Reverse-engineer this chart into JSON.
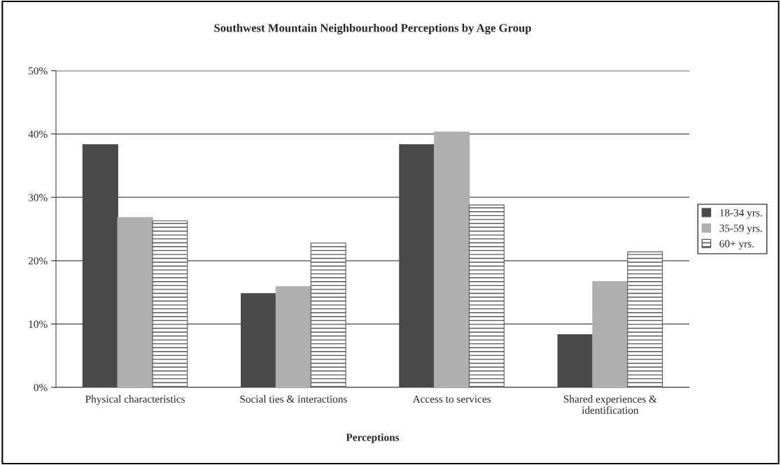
{
  "chart_data": {
    "type": "bar",
    "title": "Southwest Mountain Neighbourhood Perceptions by Age Group",
    "xlabel": "Perceptions",
    "categories": [
      "Physical characteristics",
      "Social ties & interactions",
      "Access to services",
      "Shared experiences &\nidentification"
    ],
    "series": [
      {
        "name": "18-34 yrs.",
        "color": "#4a4a4a",
        "values": [
          38.3,
          14.8,
          38.3,
          8.3
        ]
      },
      {
        "name": "35-59 yrs.",
        "color": "#b0b0b0",
        "values": [
          26.8,
          15.9,
          40.3,
          16.7
        ]
      },
      {
        "name": "60+ yrs.",
        "color": "#555555",
        "values": [
          26.3,
          22.8,
          28.8,
          21.4
        ]
      }
    ],
    "ylim": [
      0,
      50
    ],
    "yticks": [
      {
        "value": 0,
        "label": "0%"
      },
      {
        "value": 10,
        "label": "10%"
      },
      {
        "value": 20,
        "label": "20%"
      },
      {
        "value": 30,
        "label": "30%"
      },
      {
        "value": 40,
        "label": "40%"
      },
      {
        "value": 50,
        "label": "50%"
      }
    ],
    "grid": "y",
    "legend": "right"
  }
}
